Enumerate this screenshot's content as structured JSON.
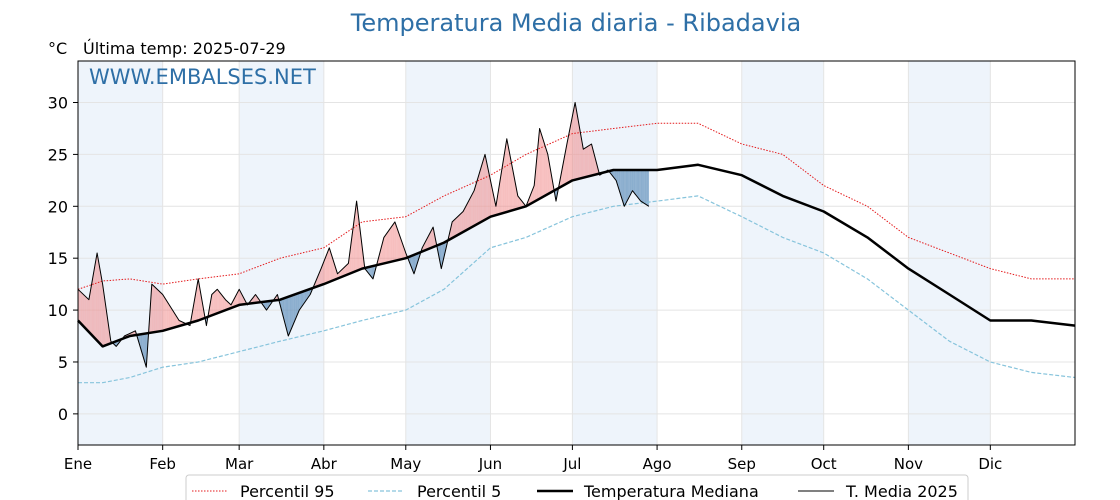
{
  "chart_data": {
    "type": "line",
    "title": "Temperatura Media diaria - Ribadavia",
    "ylabel": "°C",
    "subtitle": "Última temp: 2025-07-29",
    "watermark": "WWW.EMBALSES.NET",
    "ylim": [
      -3,
      34
    ],
    "yticks": [
      0,
      5,
      10,
      15,
      20,
      25,
      30
    ],
    "x_unit": "day of year",
    "xlim": [
      1,
      366
    ],
    "xticks": [
      {
        "label": "Ene",
        "day": 1
      },
      {
        "label": "Feb",
        "day": 32
      },
      {
        "label": "Mar",
        "day": 60
      },
      {
        "label": "Abr",
        "day": 91
      },
      {
        "label": "May",
        "day": 121
      },
      {
        "label": "Jun",
        "day": 152
      },
      {
        "label": "Jul",
        "day": 182
      },
      {
        "label": "Ago",
        "day": 213
      },
      {
        "label": "Sep",
        "day": 244
      },
      {
        "label": "Oct",
        "day": 274
      },
      {
        "label": "Nov",
        "day": 305
      },
      {
        "label": "Dic",
        "day": 335
      }
    ],
    "grid": true,
    "legend_position": "bottom",
    "colors": {
      "p95": "#e41a1c",
      "p5": "#87c4dc",
      "median": "#000000",
      "current": "#000000",
      "above_fill": "#f08080",
      "below_fill": "#4a7fb0",
      "month_band": "#eef4fb",
      "title": "#2e6fa6",
      "watermark": "#2e6fa6"
    },
    "series": [
      {
        "name": "Percentil 95",
        "style": "dotted",
        "x": [
          1,
          10,
          20,
          32,
          45,
          60,
          75,
          91,
          105,
          121,
          135,
          152,
          165,
          182,
          197,
          213,
          228,
          244,
          259,
          274,
          290,
          305,
          320,
          335,
          350,
          366
        ],
        "y": [
          12.0,
          12.8,
          13.0,
          12.5,
          13.0,
          13.5,
          15.0,
          16.0,
          18.5,
          19.0,
          21.0,
          23.0,
          25.0,
          27.0,
          27.5,
          28.0,
          28.0,
          26.0,
          25.0,
          22.0,
          20.0,
          17.0,
          15.5,
          14.0,
          13.0,
          13.0
        ]
      },
      {
        "name": "Percentil 5",
        "style": "dashed",
        "x": [
          1,
          10,
          20,
          32,
          45,
          60,
          75,
          91,
          105,
          121,
          135,
          152,
          165,
          182,
          197,
          213,
          228,
          244,
          259,
          274,
          290,
          305,
          320,
          335,
          350,
          366
        ],
        "y": [
          3.0,
          3.0,
          3.5,
          4.5,
          5.0,
          6.0,
          7.0,
          8.0,
          9.0,
          10.0,
          12.0,
          16.0,
          17.0,
          19.0,
          20.0,
          20.5,
          21.0,
          19.0,
          17.0,
          15.5,
          13.0,
          10.0,
          7.0,
          5.0,
          4.0,
          3.5
        ]
      },
      {
        "name": "Temperatura Mediana",
        "style": "thick",
        "x": [
          1,
          10,
          20,
          32,
          45,
          60,
          75,
          91,
          105,
          121,
          135,
          152,
          165,
          182,
          197,
          213,
          228,
          244,
          259,
          274,
          290,
          305,
          320,
          335,
          350,
          366
        ],
        "y": [
          9.0,
          6.5,
          7.5,
          8.0,
          9.0,
          10.5,
          11.0,
          12.5,
          14.0,
          15.0,
          16.5,
          19.0,
          20.0,
          22.5,
          23.5,
          23.5,
          24.0,
          23.0,
          21.0,
          19.5,
          17.0,
          14.0,
          11.5,
          9.0,
          9.0,
          8.5
        ]
      },
      {
        "name": "T. Media 2025",
        "style": "thin",
        "x": [
          1,
          5,
          8,
          10,
          13,
          15,
          18,
          22,
          26,
          28,
          32,
          38,
          42,
          45,
          48,
          50,
          52,
          55,
          57,
          60,
          63,
          66,
          70,
          74,
          78,
          82,
          86,
          90,
          93,
          96,
          100,
          103,
          106,
          109,
          113,
          117,
          121,
          124,
          127,
          131,
          134,
          138,
          142,
          146,
          150,
          154,
          158,
          162,
          165,
          168,
          170,
          173,
          176,
          180,
          183,
          186,
          189,
          192,
          195,
          198,
          201,
          204,
          207,
          210
        ],
        "y": [
          12.0,
          11.0,
          15.5,
          12.5,
          7.0,
          6.5,
          7.5,
          8.0,
          4.5,
          12.5,
          11.5,
          9.0,
          8.5,
          13.0,
          8.5,
          11.5,
          12.0,
          11.0,
          10.5,
          12.0,
          10.5,
          11.5,
          10.0,
          11.5,
          7.5,
          10.0,
          11.5,
          14.0,
          16.0,
          13.5,
          14.5,
          20.5,
          14.0,
          13.0,
          17.0,
          18.5,
          15.5,
          13.5,
          16.0,
          18.0,
          14.0,
          18.5,
          19.5,
          21.5,
          25.0,
          20.0,
          26.5,
          21.0,
          20.0,
          22.0,
          27.5,
          25.0,
          20.5,
          26.0,
          30.0,
          25.5,
          26.0,
          23.0,
          23.5,
          22.5,
          20.0,
          21.5,
          20.5,
          20.0
        ]
      }
    ]
  }
}
